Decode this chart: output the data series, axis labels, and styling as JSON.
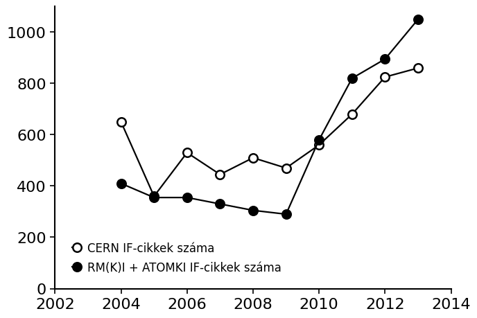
{
  "years_cern": [
    2004,
    2005,
    2006,
    2007,
    2008,
    2009,
    2010,
    2011,
    2012,
    2013
  ],
  "values_cern": [
    650,
    360,
    530,
    445,
    510,
    470,
    560,
    680,
    825,
    860
  ],
  "years_rmki": [
    2004,
    2005,
    2006,
    2007,
    2008,
    2009,
    2010,
    2011,
    2012,
    2013
  ],
  "values_rmki": [
    410,
    355,
    355,
    330,
    305,
    290,
    580,
    820,
    895,
    1050
  ],
  "xlim": [
    2002,
    2014
  ],
  "ylim": [
    0,
    1100
  ],
  "yticks": [
    0,
    200,
    400,
    600,
    800,
    1000
  ],
  "xticks": [
    2002,
    2004,
    2006,
    2008,
    2010,
    2012,
    2014
  ],
  "legend_open": "CERN IF-cikkek száma",
  "legend_filled": "RM(K)I + ATOMKI IF-cikkek száma",
  "line_color": "#000000",
  "marker_size_open": 9,
  "marker_size_filled": 9,
  "linewidth": 1.6,
  "background_color": "#ffffff",
  "tick_labelsize": 16,
  "legend_fontsize": 12
}
